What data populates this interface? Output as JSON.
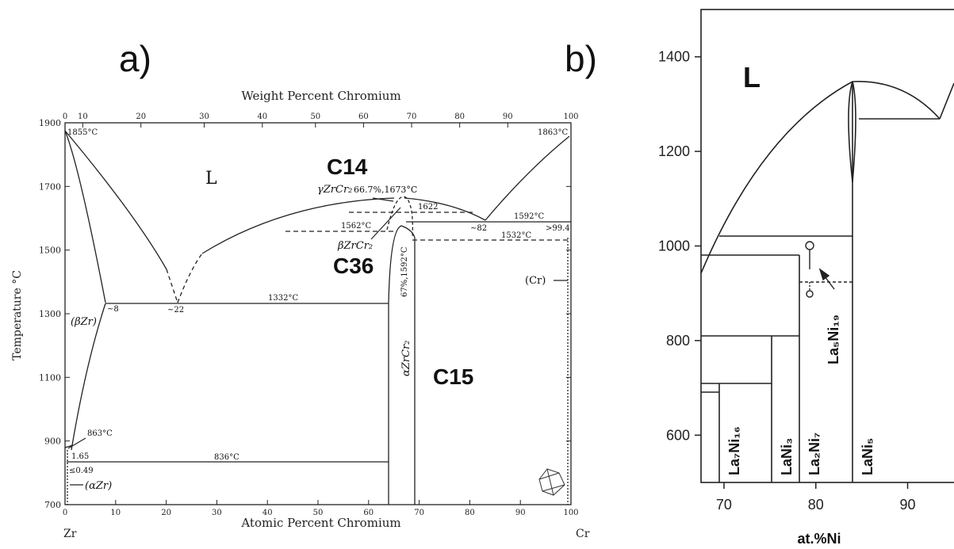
{
  "panel_a": {
    "panel_label": "a)",
    "top_axis_title": "Weight Percent Chromium",
    "bottom_axis_title": "Atomic Percent Chromium",
    "left_axis_title": "Temperature °C",
    "left_element": "Zr",
    "right_element": "Cr",
    "labels": {
      "liquid": "L",
      "c14": "C14",
      "c36": "C36",
      "c15": "C15",
      "gamma": "γZrCr₂",
      "gamma_info": "66.7%,1673°C",
      "beta": "βZrCr₂",
      "alpha": "αZrCr₂",
      "beta_zr": "(βZr)",
      "alpha_zr": "(αZr)",
      "cr_solid": "(Cr)",
      "t_zr_melt": "1855°C",
      "t_cr_melt": "1863°C",
      "t_1332": "1332°C",
      "t_1622": "1622",
      "t_1592": "1592°C",
      "t_1562": "1562°C",
      "t_1532": "1532°C",
      "t_863": "863°C",
      "t_836": "836°C",
      "c_8": "~8",
      "c_22": "~22",
      "c_82": "~82",
      "c_994": ">99.4",
      "c_165": "1.65",
      "c_049": "≤0.49",
      "c_1592_67": "67%,1592°C"
    }
  },
  "panel_b": {
    "panel_label": "b)",
    "x_axis_title": "at.%Ni",
    "labels": {
      "liquid": "L",
      "la7ni16": "La₇Ni₁₆",
      "lani3": "LaNi₃",
      "la2ni7": "La₂Ni₇",
      "lani5": "LaNi₅",
      "la5ni19": "La₅Ni₁₉"
    }
  },
  "chart_data": [
    {
      "type": "line",
      "title": "",
      "xlabel": "Atomic Percent Chromium",
      "x2label": "Weight Percent Chromium",
      "ylabel": "Temperature °C",
      "xlim": [
        0,
        100
      ],
      "ylim": [
        700,
        1900
      ],
      "x_ticks": [
        0,
        10,
        20,
        30,
        40,
        50,
        60,
        70,
        80,
        90,
        100
      ],
      "x2_ticks": [
        0,
        10,
        20,
        30,
        40,
        50,
        60,
        70,
        80,
        90,
        100
      ],
      "y_ticks": [
        700,
        900,
        1100,
        1300,
        1500,
        1700,
        1900
      ],
      "series": [
        {
          "name": "liquidus",
          "x": [
            0,
            8,
            22
          ],
          "y": [
            1855,
            1332,
            1332
          ]
        },
        {
          "name": "liquidus",
          "x": [
            22,
            40,
            66.7
          ],
          "y": [
            1332,
            1540,
            1673
          ]
        },
        {
          "name": "liquidus",
          "x": [
            66.7,
            82
          ],
          "y": [
            1673,
            1592
          ]
        },
        {
          "name": "liquidus",
          "x": [
            82,
            100
          ],
          "y": [
            1592,
            1863
          ]
        }
      ]
    },
    {
      "type": "line",
      "title": "",
      "xlabel": "at.%Ni",
      "ylabel": "",
      "xlim": [
        67.5,
        96
      ],
      "ylim": [
        500,
        1500
      ],
      "x_ticks": [
        70,
        80,
        90
      ],
      "y_ticks": [
        600,
        800,
        1000,
        1200,
        1400
      ],
      "series": [
        {
          "name": "liquidus",
          "x": [
            67.5,
            75,
            80,
            83.3
          ],
          "y": [
            940,
            1150,
            1290,
            1350
          ]
        },
        {
          "name": "liquidus",
          "x": [
            83.3,
            90
          ],
          "y": [
            1350,
            1270
          ]
        }
      ]
    }
  ]
}
